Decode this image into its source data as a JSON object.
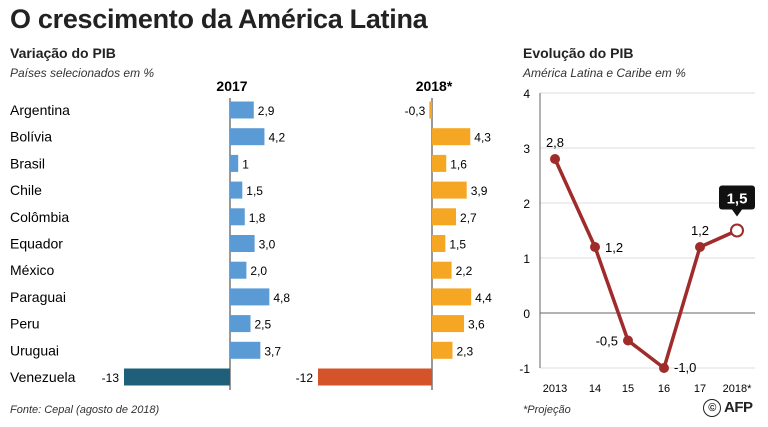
{
  "title": "O crescimento da América Latina",
  "left_panel": {
    "subtitle": "Variação do PIB",
    "note": "Países selecionados em %",
    "col_2017": "2017",
    "col_2018": "2018*"
  },
  "right_panel": {
    "subtitle": "Evolução do PIB",
    "note": "América Latina e Caribe em %"
  },
  "source": "Fonte: Cepal (agosto de 2018)",
  "footnote": "*Projeção",
  "logo": "AFP",
  "colors": {
    "blue": "#5b9bd5",
    "orange": "#f5a623",
    "venezuela_2017": "#1f5f7a",
    "venezuela_2018": "#d4532a",
    "line": "#a02b2b",
    "grid": "#dddddd"
  },
  "chart_data": [
    {
      "type": "bar",
      "categories": [
        "Argentina",
        "Bolívia",
        "Brasil",
        "Chile",
        "Colômbia",
        "Equador",
        "México",
        "Paraguai",
        "Peru",
        "Uruguai",
        "Venezuela"
      ],
      "series": [
        {
          "name": "2017",
          "values": [
            2.9,
            4.2,
            1,
            1.5,
            1.8,
            3.0,
            2.0,
            4.8,
            2.5,
            3.7,
            -13
          ],
          "labels": [
            "2,9",
            "4,2",
            "1",
            "1,5",
            "1,8",
            "3,0",
            "2,0",
            "4,8",
            "2,5",
            "3,7",
            "-13"
          ]
        },
        {
          "name": "2018*",
          "values": [
            -0.3,
            4.3,
            1.6,
            3.9,
            2.7,
            1.5,
            2.2,
            4.4,
            3.6,
            2.3,
            -12
          ],
          "labels": [
            "-0,3",
            "4,3",
            "1,6",
            "3,9",
            "2,7",
            "1,5",
            "2,2",
            "4,4",
            "3,6",
            "2,3",
            "-12"
          ]
        }
      ]
    },
    {
      "type": "line",
      "x": [
        "2013",
        "14",
        "15",
        "16",
        "17",
        "2018*"
      ],
      "values": [
        2.8,
        1.2,
        -0.5,
        -1.0,
        1.2,
        1.5
      ],
      "labels": [
        "2,8",
        "1,2",
        "-0,5",
        "-1,0",
        "1,2",
        "1,5"
      ],
      "highlight_label": "1,5",
      "ylim": [
        -1,
        4
      ],
      "yticks": [
        "-1",
        "0",
        "1",
        "2",
        "3",
        "4"
      ],
      "grid": true
    }
  ]
}
